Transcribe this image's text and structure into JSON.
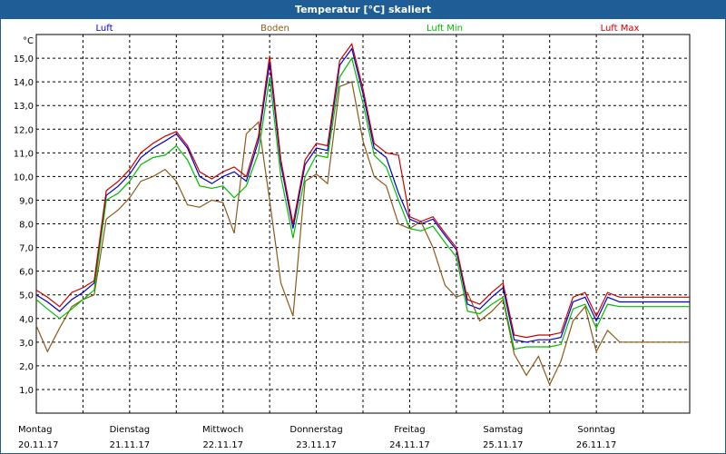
{
  "window": {
    "title": "Temperatur [°C] skaliert"
  },
  "chart_data": {
    "type": "line",
    "title": "Temperatur [°C] skaliert",
    "ylabel": "°C",
    "xlabel": "",
    "ylim": [
      0,
      16
    ],
    "xlim": [
      0,
      7
    ],
    "yticks": [
      1.0,
      2.0,
      3.0,
      4.0,
      5.0,
      6.0,
      7.0,
      8.0,
      9.0,
      10.0,
      11.0,
      12.0,
      13.0,
      14.0,
      15.0
    ],
    "ytick_labels": [
      "1,0",
      "2,0",
      "3,0",
      "4,0",
      "5,0",
      "6,0",
      "7,0",
      "8,0",
      "9,0",
      "10,0",
      "11,0",
      "12,0",
      "13,0",
      "14,0",
      "15,0"
    ],
    "grid": true,
    "days": [
      {
        "name": "Montag",
        "date": "20.11.17"
      },
      {
        "name": "Dienstag",
        "date": "21.11.17"
      },
      {
        "name": "Mittwoch",
        "date": "22.11.17"
      },
      {
        "name": "Donnerstag",
        "date": "23.11.17"
      },
      {
        "name": "Freitag",
        "date": "24.11.17"
      },
      {
        "name": "Samstag",
        "date": "25.11.17"
      },
      {
        "name": "Sonntag",
        "date": "26.11.17"
      }
    ],
    "series": [
      {
        "name": "Luft",
        "color": "#0000cc",
        "x": [
          0,
          0.12,
          0.25,
          0.38,
          0.5,
          0.62,
          0.75,
          0.88,
          1,
          1.12,
          1.25,
          1.38,
          1.5,
          1.62,
          1.75,
          1.88,
          2,
          2.12,
          2.25,
          2.38,
          2.5,
          2.62,
          2.75,
          2.88,
          3,
          3.12,
          3.25,
          3.38,
          3.5,
          3.62,
          3.75,
          3.88,
          4,
          4.12,
          4.25,
          4.38,
          4.5,
          4.62,
          4.75,
          4.88,
          5,
          5.12,
          5.25,
          5.38,
          5.5,
          5.62,
          5.75,
          5.88,
          6,
          6.12,
          6.25,
          6.38,
          6.5,
          6.62,
          6.75,
          6.88,
          7
        ],
        "y": [
          5.0,
          4.7,
          4.3,
          4.8,
          5.1,
          5.5,
          9.2,
          9.6,
          10.1,
          10.8,
          11.2,
          11.5,
          11.8,
          11.2,
          10.0,
          9.7,
          10.0,
          10.2,
          9.8,
          11.5,
          14.8,
          10.5,
          7.8,
          10.5,
          11.2,
          11.1,
          14.7,
          15.4,
          13.5,
          11.2,
          10.8,
          9.3,
          8.2,
          8.0,
          8.2,
          7.5,
          6.9,
          4.6,
          4.4,
          4.9,
          5.3,
          3.1,
          3.0,
          3.1,
          3.1,
          3.2,
          4.7,
          4.9,
          3.9,
          4.9,
          4.7,
          4.7,
          4.7,
          4.7,
          4.7,
          4.7,
          4.7
        ]
      },
      {
        "name": "Boden",
        "color": "#8b5a1a",
        "x": [
          0,
          0.12,
          0.25,
          0.38,
          0.5,
          0.62,
          0.75,
          0.88,
          1,
          1.12,
          1.25,
          1.38,
          1.5,
          1.62,
          1.75,
          1.88,
          2,
          2.12,
          2.25,
          2.38,
          2.5,
          2.62,
          2.75,
          2.88,
          3,
          3.12,
          3.25,
          3.38,
          3.5,
          3.62,
          3.75,
          3.88,
          4,
          4.12,
          4.25,
          4.38,
          4.5,
          4.62,
          4.75,
          4.88,
          5,
          5.12,
          5.25,
          5.38,
          5.5,
          5.62,
          5.75,
          5.88,
          6,
          6.12,
          6.25,
          6.38,
          6.5,
          6.62,
          6.75,
          6.88,
          7
        ],
        "y": [
          3.7,
          2.6,
          3.6,
          4.5,
          4.8,
          5.0,
          8.2,
          8.6,
          9.1,
          9.8,
          10.0,
          10.3,
          9.8,
          8.8,
          8.7,
          9.0,
          8.9,
          7.6,
          11.8,
          12.3,
          9.0,
          5.5,
          4.1,
          9.8,
          10.1,
          9.7,
          13.8,
          14.0,
          11.5,
          10.0,
          9.6,
          8.0,
          7.8,
          8.1,
          7.0,
          5.4,
          4.9,
          5.1,
          3.9,
          4.3,
          4.8,
          2.5,
          1.6,
          2.4,
          1.2,
          2.2,
          3.9,
          4.5,
          2.6,
          3.5,
          3.0,
          3.0,
          3.0,
          3.0,
          3.0,
          3.0,
          3.0
        ]
      },
      {
        "name": "Luft Min",
        "color": "#00bb00",
        "x": [
          0,
          0.12,
          0.25,
          0.38,
          0.5,
          0.62,
          0.75,
          0.88,
          1,
          1.12,
          1.25,
          1.38,
          1.5,
          1.62,
          1.75,
          1.88,
          2,
          2.12,
          2.25,
          2.38,
          2.5,
          2.62,
          2.75,
          2.88,
          3,
          3.12,
          3.25,
          3.38,
          3.5,
          3.62,
          3.75,
          3.88,
          4,
          4.12,
          4.25,
          4.38,
          4.5,
          4.62,
          4.75,
          4.88,
          5,
          5.12,
          5.25,
          5.38,
          5.5,
          5.62,
          5.75,
          5.88,
          6,
          6.12,
          6.25,
          6.38,
          6.5,
          6.62,
          6.75,
          6.88,
          7
        ],
        "y": [
          4.8,
          4.4,
          4.0,
          4.4,
          4.8,
          5.2,
          9.0,
          9.3,
          9.8,
          10.5,
          10.8,
          10.9,
          11.3,
          10.7,
          9.6,
          9.5,
          9.6,
          9.1,
          9.6,
          11.0,
          14.2,
          10.0,
          7.4,
          10.0,
          10.9,
          10.8,
          14.2,
          15.0,
          13.1,
          10.9,
          10.4,
          9.0,
          7.8,
          7.7,
          7.9,
          7.2,
          6.6,
          4.3,
          4.2,
          4.6,
          4.9,
          2.7,
          2.8,
          2.8,
          2.8,
          2.9,
          4.4,
          4.6,
          3.6,
          4.6,
          4.5,
          4.5,
          4.5,
          4.5,
          4.5,
          4.5,
          4.5
        ]
      },
      {
        "name": "Luft Max",
        "color": "#cc0000",
        "x": [
          0,
          0.12,
          0.25,
          0.38,
          0.5,
          0.62,
          0.75,
          0.88,
          1,
          1.12,
          1.25,
          1.38,
          1.5,
          1.62,
          1.75,
          1.88,
          2,
          2.12,
          2.25,
          2.38,
          2.5,
          2.62,
          2.75,
          2.88,
          3,
          3.12,
          3.25,
          3.38,
          3.5,
          3.62,
          3.75,
          3.88,
          4,
          4.12,
          4.25,
          4.38,
          4.5,
          4.62,
          4.75,
          4.88,
          5,
          5.12,
          5.25,
          5.38,
          5.5,
          5.62,
          5.75,
          5.88,
          6,
          6.12,
          6.25,
          6.38,
          6.5,
          6.62,
          6.75,
          6.88,
          7
        ],
        "y": [
          5.2,
          4.9,
          4.5,
          5.1,
          5.3,
          5.6,
          9.4,
          9.8,
          10.3,
          11.0,
          11.4,
          11.7,
          11.9,
          11.3,
          10.2,
          9.9,
          10.2,
          10.4,
          10.0,
          11.7,
          15.1,
          10.7,
          8.0,
          10.7,
          11.4,
          11.3,
          14.9,
          15.6,
          13.7,
          11.4,
          11.0,
          10.9,
          8.3,
          8.1,
          8.3,
          7.6,
          7.0,
          4.8,
          4.6,
          5.1,
          5.5,
          3.3,
          3.2,
          3.3,
          3.3,
          3.4,
          4.9,
          5.1,
          4.1,
          5.1,
          4.9,
          4.9,
          4.9,
          4.9,
          4.9,
          4.9,
          4.9
        ]
      }
    ]
  }
}
